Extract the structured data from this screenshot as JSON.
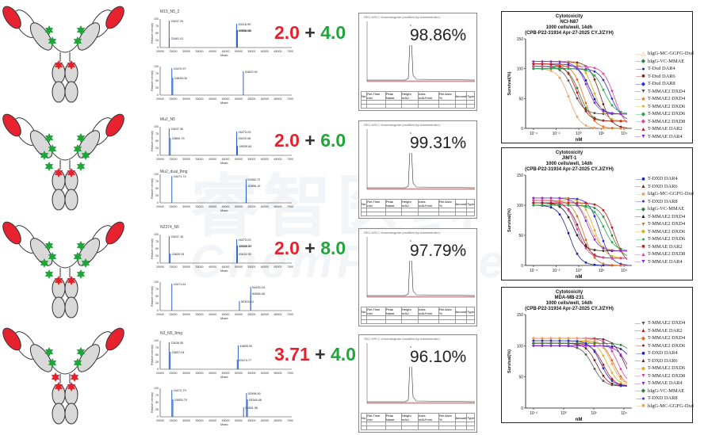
{
  "watermark": {
    "cn": "睿智医药",
    "en": "ChemPartner"
  },
  "colors": {
    "red": "#e5222d",
    "green": "#1fa53a",
    "heavy": "#d9d9d9"
  },
  "rows": [
    {
      "ms_title_top": "M15_N5_2",
      "ms_top_peaks": [
        "23437.29",
        "49218.99",
        "49541.88",
        "23491.01",
        "49188.51"
      ],
      "ms_bottom_peaks": [
        "24470.97",
        "51802.90",
        "24828.08"
      ],
      "dar_red": "2.0",
      "dar_plus": "+",
      "dar_green": "4.0",
      "purity": "98.86%",
      "heavy_red": [
        true,
        false
      ],
      "heavy_green": [
        true,
        false
      ]
    },
    {
      "ms_title_top": "Mu2_N5",
      "ms_top_peaks": [
        "23437.30",
        "49273.09",
        "49229.06",
        "49539.84",
        "23890.75"
      ],
      "ms_title_bottom": "Mu2_dual_8mg",
      "ms_bottom_peaks": [
        "24471.74",
        "52850.72",
        "52898.19"
      ],
      "dar_red": "2.0",
      "dar_plus": "+",
      "dar_green": "6.0",
      "purity": "99.31%",
      "heavy_red": [
        true,
        false
      ],
      "heavy_green": [
        true,
        true
      ]
    },
    {
      "ms_title_top": "N2374_N5",
      "ms_top_peaks": [
        "23437.15",
        "49273.03",
        "49539.57",
        "23830.94",
        "49539.92",
        "49431.92"
      ],
      "ms_bottom_peaks": [
        "24471.61",
        "54620.24",
        "54556.48",
        "50303.14"
      ],
      "dar_red": "2.0",
      "dar_plus": "+",
      "dar_green": "8.0",
      "purity": "97.79%",
      "heavy_red": [
        true,
        false
      ],
      "heavy_green": [
        true,
        true
      ]
    },
    {
      "ms_title_top": "N3_N5_8mg",
      "ms_top_peaks": [
        "23436.55",
        "49826.90",
        "23837.04",
        "49474.77"
      ],
      "ms_bottom_peaks": [
        "24472.79",
        "52998.90",
        "24855.79",
        "51881.98",
        "53348.48"
      ],
      "dar_red": "3.71",
      "dar_plus": "+",
      "dar_green": "4.0",
      "purity": "96.10%",
      "heavy_red": [
        true,
        true
      ],
      "heavy_green": [
        true,
        false
      ]
    }
  ],
  "ms_axis": {
    "xlabel": "Mass",
    "ylabel": "Relative intensity",
    "xticks": [
      "20000",
      "25000",
      "30000",
      "35000",
      "40000",
      "45000",
      "50000",
      "55000",
      "60000",
      "65000",
      "70000"
    ],
    "yticks": [
      "0",
      "25",
      "50",
      "75",
      "100"
    ]
  },
  "hplc_title": "SEC-HPLC chromatogram (modified by Administrator)",
  "hplc_cols": [
    "No.",
    "Ret.Time min",
    "Peak Name",
    "Height mAU",
    "Area mAU*min",
    "Rel.Area %",
    "Amount",
    "Type"
  ],
  "cyto": [
    {
      "title": "Cytotoxicity",
      "cell": "NCI-N87",
      "cond": "1000 cells/well, 14dh",
      "proj": "(CPB-P22-31934  Apr-27-2025 CY.J/ZYH)",
      "xlabel": "nM",
      "ylabel": "Survival(%)",
      "xticks": [
        "10⁻⁴",
        "10⁻²",
        "10⁰",
        "10²",
        "10⁴"
      ],
      "yticks": [
        "0",
        "50",
        "100",
        "150"
      ],
      "legend": [
        {
          "label": "hIgG-MC-GGFG-Dxd",
          "marker": "△",
          "color": "#e8a25a"
        },
        {
          "label": "hIgG-VC-MMAE",
          "marker": "◆",
          "color": "#2f7f3a"
        },
        {
          "label": "T-Dxd DAR4",
          "marker": "●",
          "color": "#1d1d9a"
        },
        {
          "label": "T-Dxd DAR6",
          "marker": "■",
          "color": "#7a1f1f"
        },
        {
          "label": "T-Dxd DAR8",
          "marker": "◆",
          "color": "#2b2bd6"
        },
        {
          "label": "T-MMAE2 DXD4",
          "marker": "▼",
          "color": "#555"
        },
        {
          "label": "T-MMAE2 DXD4",
          "marker": "★",
          "color": "#e66a1e"
        },
        {
          "label": "T-MMAE2 DXD6",
          "marker": "●",
          "color": "#d9b020"
        },
        {
          "label": "T-MMAE2 DXD6",
          "marker": "◆",
          "color": "#22aa44"
        },
        {
          "label": "T-MMAE2 DXD8",
          "marker": "◆",
          "color": "#e0409a"
        },
        {
          "label": "T-MMAE DAR2",
          "marker": "▲",
          "color": "#c01818"
        },
        {
          "label": "T-MMAE DAR4",
          "marker": "▼",
          "color": "#8a2be2"
        }
      ]
    },
    {
      "title": "Cytotoxicity",
      "cell": "JIMT-1",
      "cond": "1000 cells/well, 14dh",
      "proj": "(CPB-P22-31934  Apr-27-2025 CY.J/ZYH)",
      "xlabel": "nM",
      "ylabel": "Survival(%)",
      "xticks": [
        "10⁻⁴",
        "10⁻²",
        "10⁰",
        "10²",
        "10⁴"
      ],
      "yticks": [
        "0",
        "50",
        "100",
        "150"
      ],
      "legend": [
        {
          "label": "T-DXD DAR4",
          "marker": "■",
          "color": "#1d1d9a"
        },
        {
          "label": "T-DXD DAR6",
          "marker": "▲",
          "color": "#7a1f1f"
        },
        {
          "label": "hIgG-MC-GGFG-Dxd",
          "marker": "■",
          "color": "#e8a25a"
        },
        {
          "label": "T-DXD DAR8",
          "marker": "●",
          "color": "#2b2bd6"
        },
        {
          "label": "hIgG-VC-MMAE",
          "marker": "◆",
          "color": "#2f7f3a"
        },
        {
          "label": "T-MMAE2 DXD4",
          "marker": "▲",
          "color": "#222"
        },
        {
          "label": "T-MMAE2 DXD4",
          "marker": "▼",
          "color": "#e66a1e"
        },
        {
          "label": "T-MMAE2 DXD6",
          "marker": "◆",
          "color": "#d9b020"
        },
        {
          "label": "T-MMAE2 DXD6",
          "marker": "●",
          "color": "#22aa44"
        },
        {
          "label": "T-MMAE DAR2",
          "marker": "■",
          "color": "#c01818"
        },
        {
          "label": "T-MMAE2 DXD8",
          "marker": "▲",
          "color": "#e0409a"
        },
        {
          "label": "T-MMAE DAR4",
          "marker": "▼",
          "color": "#8a2be2"
        }
      ]
    },
    {
      "title": "Cytotoxicity",
      "cell": "MDA-MB-231",
      "cond": "1000 cells/well, 14dh",
      "proj": "(CPB-P22-31934  Apr-27-2025 CY.J/ZYH)",
      "xlabel": "nM",
      "ylabel": "Survival(%)",
      "xticks": [
        "10⁻²",
        "10⁰",
        "10²",
        "10⁴"
      ],
      "yticks": [
        "0",
        "50",
        "100",
        "150"
      ],
      "legend": [
        {
          "label": "T-MMAE2 DXD4",
          "marker": "▼",
          "color": "#555"
        },
        {
          "label": "T-MMAE DAR2",
          "marker": "▲",
          "color": "#c01818"
        },
        {
          "label": "T-MMAE2 DXD4",
          "marker": "◆",
          "color": "#e66a1e"
        },
        {
          "label": "T-MMAE2 DXD6",
          "marker": "●",
          "color": "#7a1f1f"
        },
        {
          "label": "T-DXD DAR4",
          "marker": "■",
          "color": "#1d1d9a"
        },
        {
          "label": "T-DXD DAR6",
          "marker": "▲",
          "color": "#7a1f1f"
        },
        {
          "label": "T-MMAE2 DXD6",
          "marker": "◆",
          "color": "#d9b020"
        },
        {
          "label": "T-MMAE2 DXD8",
          "marker": "▼",
          "color": "#e0409a"
        },
        {
          "label": "T-MMAE DAR4",
          "marker": "▼",
          "color": "#8a2be2"
        },
        {
          "label": "hIgG-VC-MMAE",
          "marker": "◆",
          "color": "#2f7f3a"
        },
        {
          "label": "T-DXD DAR8",
          "marker": "●",
          "color": "#2b2bd6"
        },
        {
          "label": "hIgG-MC-GGFG-Dxd",
          "marker": "■",
          "color": "#e8a25a"
        }
      ]
    }
  ]
}
